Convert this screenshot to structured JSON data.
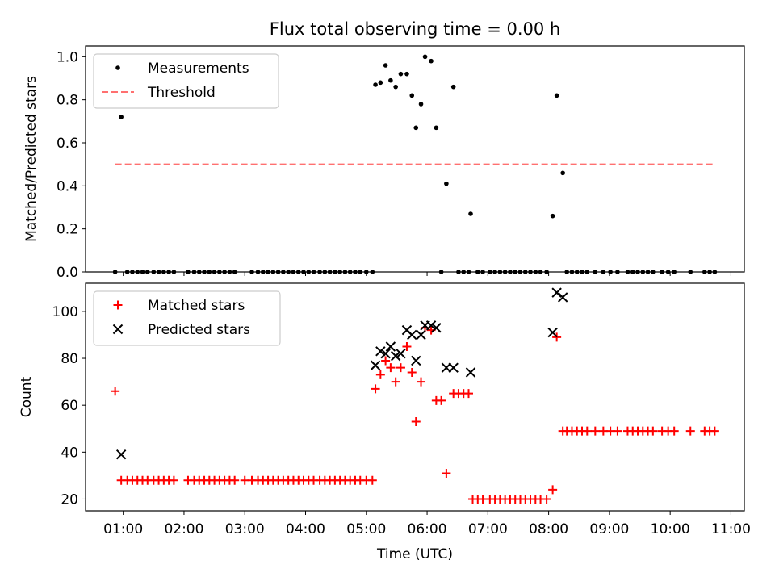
{
  "figure": {
    "title": "Flux total observing time = 0.00 h"
  },
  "chart_data": [
    {
      "type": "scatter",
      "title": "Flux total observing time = 0.00 h",
      "xlabel": "",
      "ylabel": "Matched/Predicted stars",
      "xlim_hours": [
        0.38,
        11.22
      ],
      "ylim": [
        0,
        1.05
      ],
      "yticks": [
        "0.0",
        "0.2",
        "0.4",
        "0.6",
        "0.8",
        "1.0"
      ],
      "yticks_values": [
        0,
        0.2,
        0.4,
        0.6,
        0.8,
        1.0
      ],
      "grid": false,
      "legend_position": "upper-left",
      "legend": [
        "Measurements",
        "Threshold"
      ],
      "series": [
        {
          "name": "Measurements",
          "marker": "dot",
          "color": "#000000",
          "points": [
            [
              "00:52",
              0.0
            ],
            [
              "00:58",
              0.72
            ],
            [
              "01:04",
              0.0
            ],
            [
              "01:09",
              0.0
            ],
            [
              "01:14",
              0.0
            ],
            [
              "01:19",
              0.0
            ],
            [
              "01:24",
              0.0
            ],
            [
              "01:30",
              0.0
            ],
            [
              "01:35",
              0.0
            ],
            [
              "01:40",
              0.0
            ],
            [
              "01:45",
              0.0
            ],
            [
              "01:50",
              0.0
            ],
            [
              "02:04",
              0.0
            ],
            [
              "02:10",
              0.0
            ],
            [
              "02:15",
              0.0
            ],
            [
              "02:20",
              0.0
            ],
            [
              "02:25",
              0.0
            ],
            [
              "02:30",
              0.0
            ],
            [
              "02:35",
              0.0
            ],
            [
              "02:40",
              0.0
            ],
            [
              "02:45",
              0.0
            ],
            [
              "02:50",
              0.0
            ],
            [
              "03:07",
              0.0
            ],
            [
              "03:13",
              0.0
            ],
            [
              "03:18",
              0.0
            ],
            [
              "03:23",
              0.0
            ],
            [
              "03:28",
              0.0
            ],
            [
              "03:33",
              0.0
            ],
            [
              "03:38",
              0.0
            ],
            [
              "03:43",
              0.0
            ],
            [
              "03:48",
              0.0
            ],
            [
              "03:53",
              0.0
            ],
            [
              "03:58",
              0.0
            ],
            [
              "04:03",
              0.0
            ],
            [
              "04:08",
              0.0
            ],
            [
              "04:14",
              0.0
            ],
            [
              "04:19",
              0.0
            ],
            [
              "04:24",
              0.0
            ],
            [
              "04:29",
              0.0
            ],
            [
              "04:34",
              0.0
            ],
            [
              "04:39",
              0.0
            ],
            [
              "04:44",
              0.0
            ],
            [
              "04:49",
              0.0
            ],
            [
              "04:54",
              0.0
            ],
            [
              "05:00",
              0.0
            ],
            [
              "05:06",
              0.0
            ],
            [
              "05:09",
              0.87
            ],
            [
              "05:14",
              0.88
            ],
            [
              "05:19",
              0.96
            ],
            [
              "05:24",
              0.89
            ],
            [
              "05:29",
              0.86
            ],
            [
              "05:34",
              0.92
            ],
            [
              "05:40",
              0.92
            ],
            [
              "05:45",
              0.82
            ],
            [
              "05:49",
              0.67
            ],
            [
              "05:54",
              0.78
            ],
            [
              "05:58",
              1.0
            ],
            [
              "06:04",
              0.98
            ],
            [
              "06:09",
              0.67
            ],
            [
              "06:14",
              0.0
            ],
            [
              "06:19",
              0.41
            ],
            [
              "06:26",
              0.86
            ],
            [
              "06:31",
              0.0
            ],
            [
              "06:36",
              0.0
            ],
            [
              "06:41",
              0.0
            ],
            [
              "06:43",
              0.27
            ],
            [
              "06:50",
              0.0
            ],
            [
              "06:55",
              0.0
            ],
            [
              "07:02",
              0.0
            ],
            [
              "07:07",
              0.0
            ],
            [
              "07:12",
              0.0
            ],
            [
              "07:17",
              0.0
            ],
            [
              "07:22",
              0.0
            ],
            [
              "07:27",
              0.0
            ],
            [
              "07:32",
              0.0
            ],
            [
              "07:37",
              0.0
            ],
            [
              "07:42",
              0.0
            ],
            [
              "07:47",
              0.0
            ],
            [
              "07:52",
              0.0
            ],
            [
              "07:58",
              0.0
            ],
            [
              "08:04",
              0.26
            ],
            [
              "08:08",
              0.82
            ],
            [
              "08:14",
              0.46
            ],
            [
              "08:18",
              0.0
            ],
            [
              "08:23",
              0.0
            ],
            [
              "08:28",
              0.0
            ],
            [
              "08:33",
              0.0
            ],
            [
              "08:38",
              0.0
            ],
            [
              "08:46",
              0.0
            ],
            [
              "08:54",
              0.0
            ],
            [
              "09:01",
              0.0
            ],
            [
              "09:08",
              0.0
            ],
            [
              "09:18",
              0.0
            ],
            [
              "09:23",
              0.0
            ],
            [
              "09:28",
              0.0
            ],
            [
              "09:33",
              0.0
            ],
            [
              "09:38",
              0.0
            ],
            [
              "09:43",
              0.0
            ],
            [
              "09:52",
              0.0
            ],
            [
              "09:58",
              0.0
            ],
            [
              "10:04",
              0.0
            ],
            [
              "10:20",
              0.0
            ],
            [
              "10:34",
              0.0
            ],
            [
              "10:39",
              0.0
            ],
            [
              "10:44",
              0.0
            ]
          ]
        },
        {
          "name": "Threshold",
          "type": "line",
          "style": "dashed",
          "color": "#ff7070",
          "points": [
            [
              "00:52",
              0.5
            ],
            [
              "10:44",
              0.5
            ]
          ]
        }
      ]
    },
    {
      "type": "scatter",
      "title": "",
      "xlabel": "Time (UTC)",
      "ylabel": "Count",
      "xlim_hours": [
        0.38,
        11.22
      ],
      "xticks": [
        "01:00",
        "02:00",
        "03:00",
        "04:00",
        "05:00",
        "06:00",
        "07:00",
        "08:00",
        "09:00",
        "10:00",
        "11:00"
      ],
      "ylim": [
        15,
        112
      ],
      "yticks": [
        "20",
        "40",
        "60",
        "80",
        "100"
      ],
      "yticks_values": [
        20,
        40,
        60,
        80,
        100
      ],
      "grid": false,
      "legend_position": "upper-left",
      "legend": [
        "Matched stars",
        "Predicted stars"
      ],
      "series": [
        {
          "name": "Matched stars",
          "marker": "plus",
          "color": "#ff0000",
          "points": [
            [
              "00:52",
              66
            ],
            [
              "00:58",
              28
            ],
            [
              "01:04",
              28
            ],
            [
              "01:09",
              28
            ],
            [
              "01:14",
              28
            ],
            [
              "01:19",
              28
            ],
            [
              "01:24",
              28
            ],
            [
              "01:30",
              28
            ],
            [
              "01:35",
              28
            ],
            [
              "01:40",
              28
            ],
            [
              "01:45",
              28
            ],
            [
              "01:50",
              28
            ],
            [
              "02:04",
              28
            ],
            [
              "02:10",
              28
            ],
            [
              "02:15",
              28
            ],
            [
              "02:20",
              28
            ],
            [
              "02:25",
              28
            ],
            [
              "02:30",
              28
            ],
            [
              "02:35",
              28
            ],
            [
              "02:40",
              28
            ],
            [
              "02:45",
              28
            ],
            [
              "02:50",
              28
            ],
            [
              "03:00",
              28
            ],
            [
              "03:07",
              28
            ],
            [
              "03:13",
              28
            ],
            [
              "03:18",
              28
            ],
            [
              "03:23",
              28
            ],
            [
              "03:28",
              28
            ],
            [
              "03:33",
              28
            ],
            [
              "03:38",
              28
            ],
            [
              "03:43",
              28
            ],
            [
              "03:48",
              28
            ],
            [
              "03:53",
              28
            ],
            [
              "03:58",
              28
            ],
            [
              "04:03",
              28
            ],
            [
              "04:08",
              28
            ],
            [
              "04:14",
              28
            ],
            [
              "04:19",
              28
            ],
            [
              "04:24",
              28
            ],
            [
              "04:29",
              28
            ],
            [
              "04:34",
              28
            ],
            [
              "04:39",
              28
            ],
            [
              "04:44",
              28
            ],
            [
              "04:49",
              28
            ],
            [
              "04:54",
              28
            ],
            [
              "05:00",
              28
            ],
            [
              "05:06",
              28
            ],
            [
              "05:09",
              67
            ],
            [
              "05:14",
              73
            ],
            [
              "05:19",
              79
            ],
            [
              "05:24",
              76
            ],
            [
              "05:29",
              70
            ],
            [
              "05:34",
              76
            ],
            [
              "05:40",
              85
            ],
            [
              "05:45",
              74
            ],
            [
              "05:49",
              53
            ],
            [
              "05:54",
              70
            ],
            [
              "05:58",
              93
            ],
            [
              "06:04",
              92
            ],
            [
              "06:09",
              62
            ],
            [
              "06:14",
              62
            ],
            [
              "06:19",
              31
            ],
            [
              "06:26",
              65
            ],
            [
              "06:31",
              65
            ],
            [
              "06:36",
              65
            ],
            [
              "06:41",
              65
            ],
            [
              "06:45",
              20
            ],
            [
              "06:50",
              20
            ],
            [
              "06:55",
              20
            ],
            [
              "07:02",
              20
            ],
            [
              "07:07",
              20
            ],
            [
              "07:12",
              20
            ],
            [
              "07:17",
              20
            ],
            [
              "07:22",
              20
            ],
            [
              "07:27",
              20
            ],
            [
              "07:32",
              20
            ],
            [
              "07:37",
              20
            ],
            [
              "07:42",
              20
            ],
            [
              "07:47",
              20
            ],
            [
              "07:52",
              20
            ],
            [
              "07:58",
              20
            ],
            [
              "08:04",
              24
            ],
            [
              "08:08",
              89
            ],
            [
              "08:14",
              49
            ],
            [
              "08:18",
              49
            ],
            [
              "08:23",
              49
            ],
            [
              "08:28",
              49
            ],
            [
              "08:33",
              49
            ],
            [
              "08:38",
              49
            ],
            [
              "08:46",
              49
            ],
            [
              "08:54",
              49
            ],
            [
              "09:01",
              49
            ],
            [
              "09:08",
              49
            ],
            [
              "09:18",
              49
            ],
            [
              "09:23",
              49
            ],
            [
              "09:28",
              49
            ],
            [
              "09:33",
              49
            ],
            [
              "09:38",
              49
            ],
            [
              "09:43",
              49
            ],
            [
              "09:52",
              49
            ],
            [
              "09:58",
              49
            ],
            [
              "10:04",
              49
            ],
            [
              "10:20",
              49
            ],
            [
              "10:34",
              49
            ],
            [
              "10:39",
              49
            ],
            [
              "10:44",
              49
            ]
          ]
        },
        {
          "name": "Predicted stars",
          "marker": "x",
          "color": "#000000",
          "points": [
            [
              "00:58",
              39
            ],
            [
              "05:09",
              77
            ],
            [
              "05:14",
              83
            ],
            [
              "05:19",
              82
            ],
            [
              "05:24",
              85
            ],
            [
              "05:29",
              81
            ],
            [
              "05:34",
              82
            ],
            [
              "05:40",
              92
            ],
            [
              "05:45",
              90
            ],
            [
              "05:49",
              79
            ],
            [
              "05:54",
              90
            ],
            [
              "05:58",
              94
            ],
            [
              "06:04",
              94
            ],
            [
              "06:09",
              93
            ],
            [
              "06:19",
              76
            ],
            [
              "06:26",
              76
            ],
            [
              "06:43",
              74
            ],
            [
              "08:04",
              91
            ],
            [
              "08:08",
              108
            ],
            [
              "08:14",
              106
            ]
          ]
        }
      ]
    }
  ]
}
